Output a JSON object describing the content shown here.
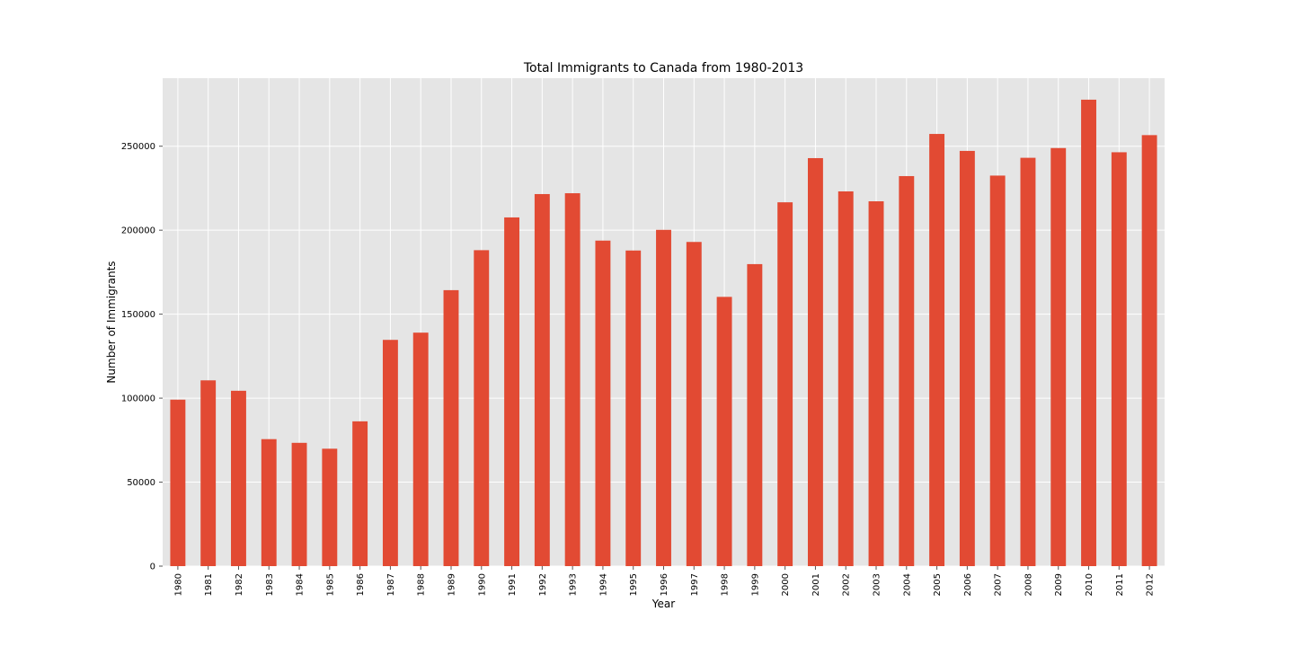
{
  "chart_data": {
    "type": "bar",
    "title": "Total Immigrants to Canada from 1980-2013",
    "xlabel": "Year",
    "ylabel": "Number of Immigrants",
    "categories": [
      "1980",
      "1981",
      "1982",
      "1983",
      "1984",
      "1985",
      "1986",
      "1987",
      "1988",
      "1989",
      "1990",
      "1991",
      "1992",
      "1993",
      "1994",
      "1995",
      "1996",
      "1997",
      "1998",
      "1999",
      "2000",
      "2001",
      "2002",
      "2003",
      "2004",
      "2005",
      "2006",
      "2007",
      "2008",
      "2009",
      "2010",
      "2011",
      "2012"
    ],
    "values": [
      99100,
      110600,
      104400,
      75600,
      73400,
      69900,
      86200,
      134700,
      139000,
      164300,
      188100,
      207600,
      221500,
      222000,
      193800,
      187900,
      200200,
      193000,
      160300,
      179800,
      216600,
      242900,
      223100,
      217200,
      232200,
      257300,
      247200,
      232500,
      243100,
      248900,
      277700,
      246400,
      256600
    ],
    "ylim": [
      0,
      290500
    ],
    "yticks": [
      0,
      50000,
      100000,
      150000,
      200000,
      250000
    ],
    "ytick_labels": [
      "0",
      "50000",
      "100000",
      "150000",
      "200000",
      "250000"
    ],
    "grid": true,
    "colors": {
      "bar": "#e24a33",
      "plot_background": "#e5e5e5",
      "grid": "#ffffff",
      "tick": "#555555"
    }
  }
}
